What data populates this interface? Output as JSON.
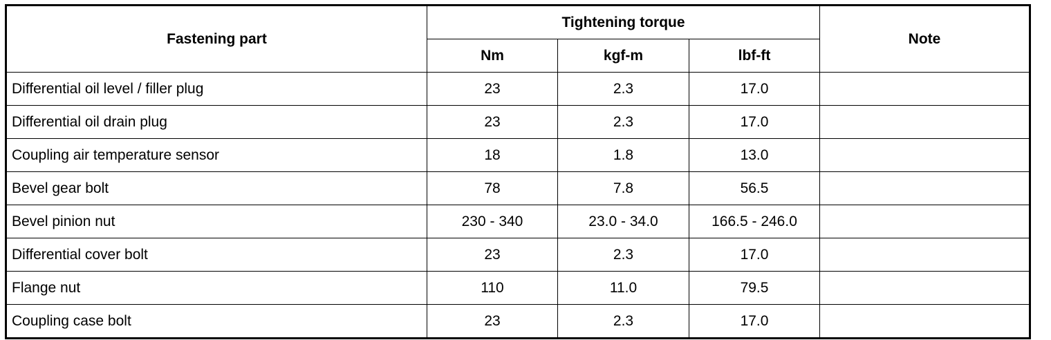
{
  "table": {
    "headers": {
      "part": "Fastening part",
      "torque": "Tightening torque",
      "note": "Note",
      "units": [
        "Nm",
        "kgf-m",
        "lbf-ft"
      ]
    },
    "rows": [
      [
        "Differential oil level / filler plug",
        "23",
        "2.3",
        "17.0"
      ],
      [
        "Differential oil drain plug",
        "23",
        "2.3",
        "17.0"
      ],
      [
        "Coupling air temperature sensor",
        "18",
        "1.8",
        "13.0"
      ],
      [
        "Bevel gear bolt",
        "78",
        "7.8",
        "56.5"
      ],
      [
        "Bevel pinion nut",
        "230 - 340",
        "23.0 - 34.0",
        "166.5 - 246.0"
      ],
      [
        "Differential cover bolt",
        "23",
        "2.3",
        "17.0"
      ],
      [
        "Flange nut",
        "110",
        "11.0",
        "79.5"
      ],
      [
        "Coupling case bolt",
        "23",
        "2.3",
        "17.0"
      ]
    ]
  }
}
